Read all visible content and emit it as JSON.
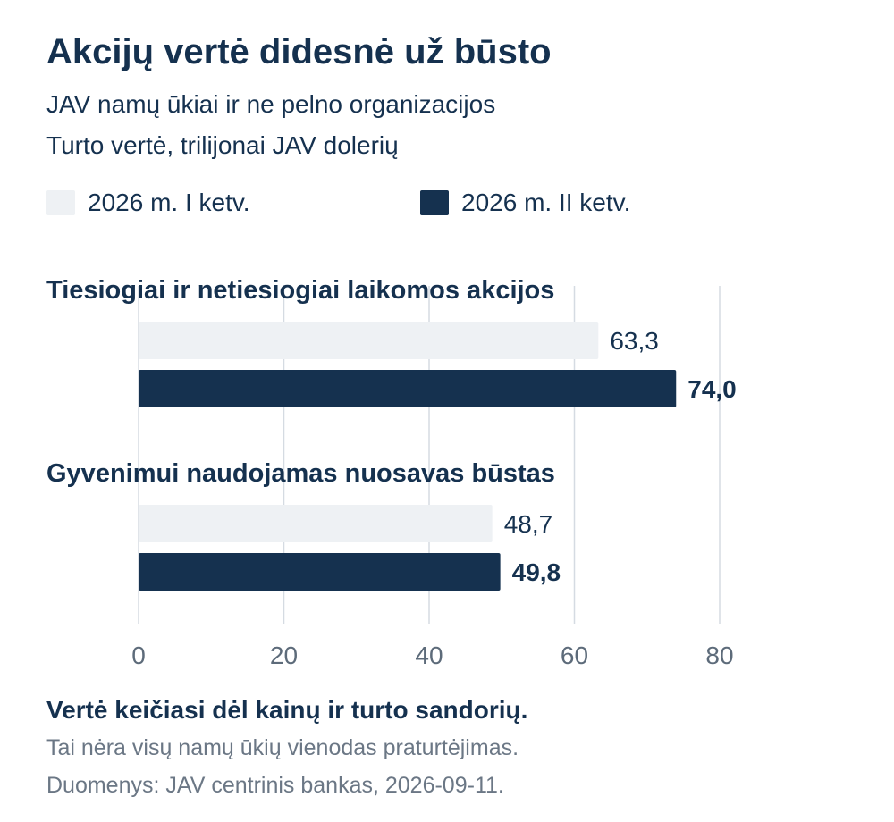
{
  "header": {
    "title": "Akcijų vertė didesnė už būsto",
    "subtitle_1": "JAV namų ūkiai ir ne pelno organizacijos",
    "subtitle_2": "Turto vertė, trilijonai JAV dolerių"
  },
  "colors": {
    "series_q1": "#eef1f4",
    "series_q2": "#15314f",
    "gridline": "#d5dbe2",
    "axis_text": "#5d6b7a",
    "text_dark": "#15314f"
  },
  "chart_data": {
    "type": "bar",
    "orientation": "horizontal",
    "categories": [
      "Tiesiogiai ir netiesiogiai laikomos akcijos",
      "Gyvenimui naudojamas nuosavas būstas"
    ],
    "series": [
      {
        "name": "2026 m. I ketv.",
        "values": [
          63.3,
          48.7
        ],
        "value_labels": [
          "63,3",
          "48,7"
        ]
      },
      {
        "name": "2026 m. II ketv.",
        "values": [
          74.0,
          49.8
        ],
        "value_labels": [
          "74,0",
          "49,8"
        ]
      }
    ],
    "xlim": [
      0,
      80
    ],
    "xticks": [
      0,
      20,
      40,
      60,
      80
    ],
    "grid": true,
    "legend_position": "top-left"
  },
  "footer": {
    "note_bold": "Vertė keičiasi dėl kainų ir turto sandorių.",
    "note_1": "Tai nėra visų namų ūkių vienodas praturtėjimas.",
    "source": "Duomenys: JAV centrinis bankas, 2026-09-11."
  }
}
